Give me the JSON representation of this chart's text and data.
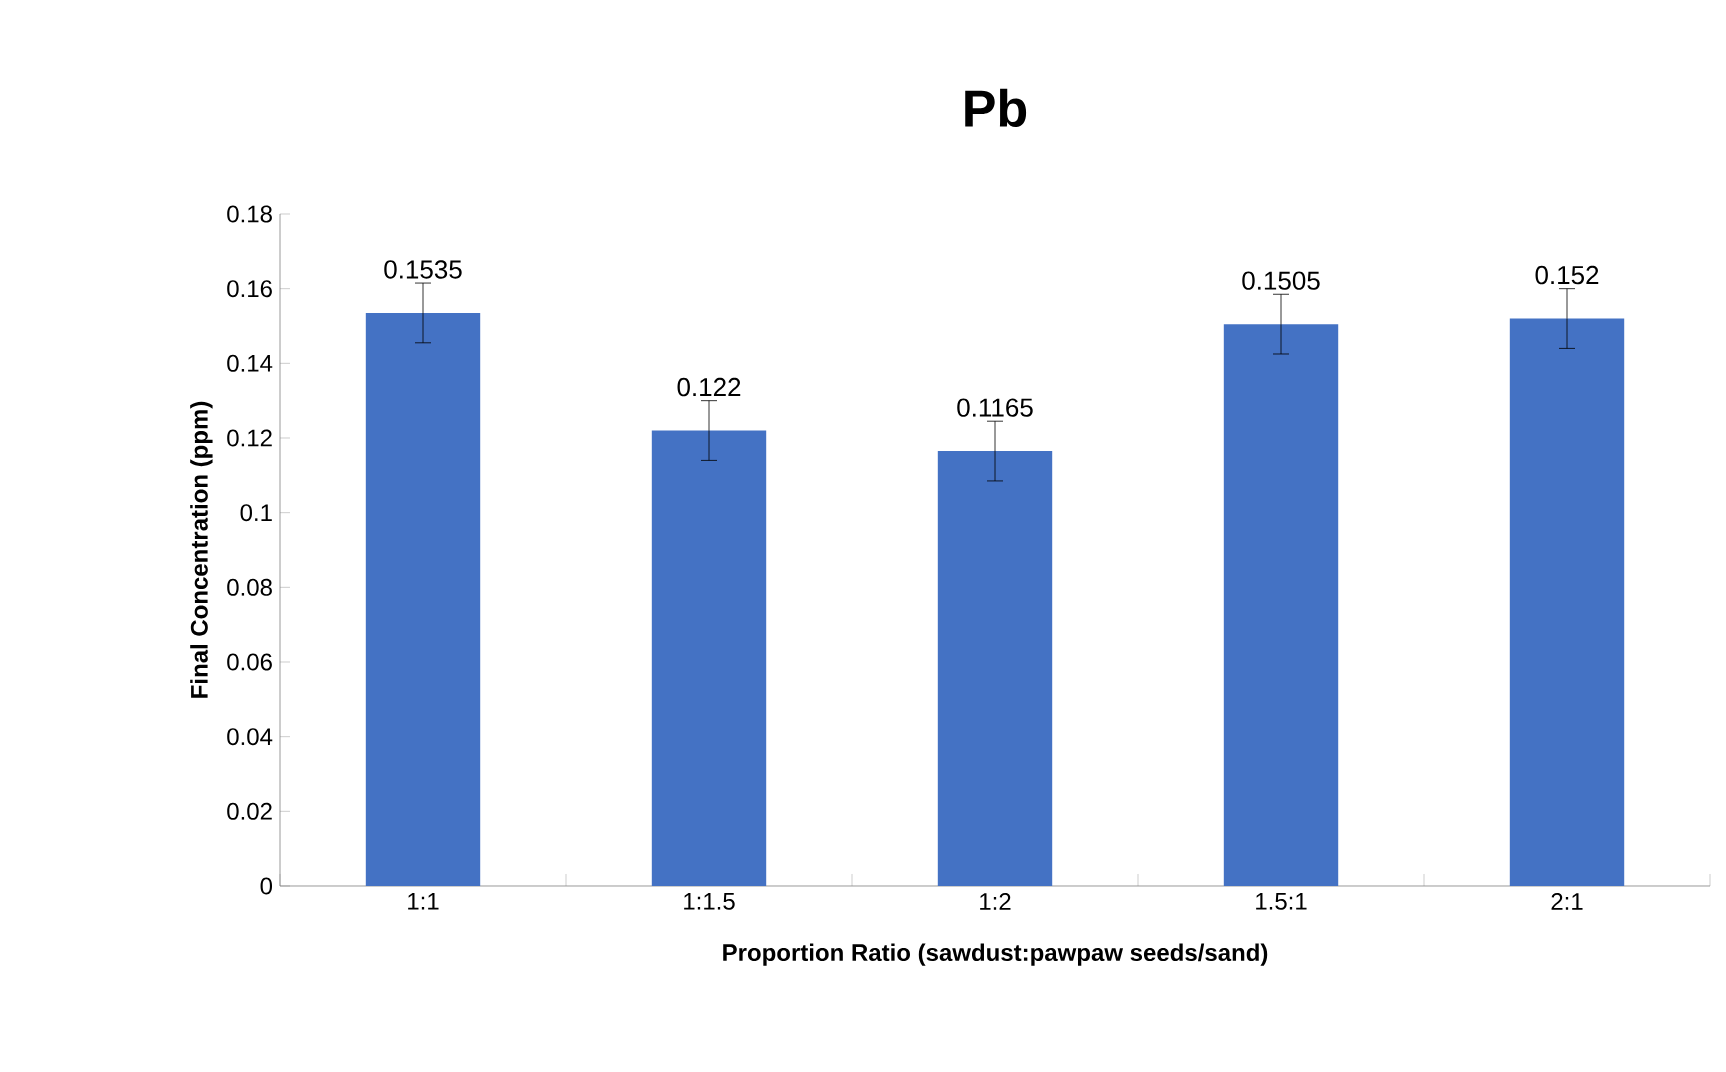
{
  "chart_data": {
    "type": "bar",
    "title": "Pb",
    "xlabel": "Proportion Ratio (sawdust:pawpaw seeds/sand)",
    "ylabel": "Final Concentration (ppm)",
    "categories": [
      "1:1",
      "1:1.5",
      "1:2",
      "1.5:1",
      "2:1"
    ],
    "values": [
      0.1535,
      0.122,
      0.1165,
      0.1505,
      0.152
    ],
    "errors": [
      0.008,
      0.008,
      0.008,
      0.008,
      0.008
    ],
    "color": "#4472c4",
    "data_labels": true,
    "grid": false,
    "ylim": [
      0,
      0.18
    ],
    "yticks": [
      0,
      0.02,
      0.04,
      0.06,
      0.08,
      0.1,
      0.12,
      0.14,
      0.16,
      0.18
    ]
  }
}
